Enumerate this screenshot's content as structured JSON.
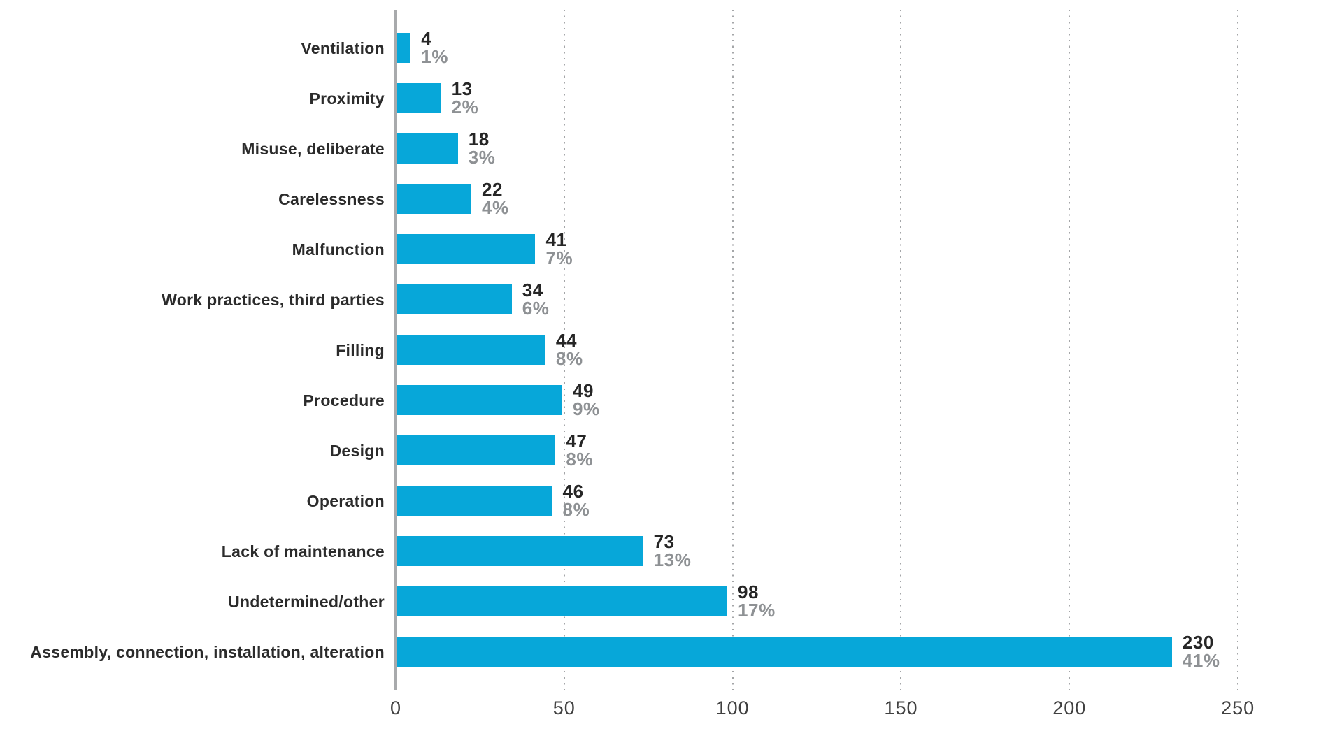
{
  "chart_data": {
    "type": "bar",
    "orientation": "horizontal",
    "title": "",
    "xlabel": "",
    "ylabel": "",
    "categories": [
      "Ventilation",
      "Proximity",
      "Misuse, deliberate",
      "Carelessness",
      "Malfunction",
      "Work practices, third parties",
      "Filling",
      "Procedure",
      "Design",
      "Operation",
      "Lack of maintenance",
      "Undetermined/other",
      "Assembly, connection, installation, alteration"
    ],
    "values": [
      4,
      13,
      18,
      22,
      41,
      34,
      44,
      49,
      47,
      46,
      73,
      98,
      230
    ],
    "percent_labels": [
      "1%",
      "2%",
      "3%",
      "4%",
      "7%",
      "6%",
      "8%",
      "9%",
      "8%",
      "8%",
      "13%",
      "17%",
      "41%"
    ],
    "x_ticks": [
      0,
      50,
      100,
      150,
      200,
      250
    ],
    "x_tick_labels": [
      "0",
      "50",
      "100",
      "150",
      "200",
      "250"
    ],
    "xlim": [
      0,
      250
    ],
    "grid": "vertical-dotted",
    "legend": "none",
    "colors": {
      "bar": "#07A7D9",
      "value_label": "#262626",
      "percent_label": "#8E9194",
      "category_label": "#2B2B2B",
      "axis_line": "#A8AAAC",
      "gridline": "#A4A6A8",
      "tick_label": "#404040"
    }
  }
}
